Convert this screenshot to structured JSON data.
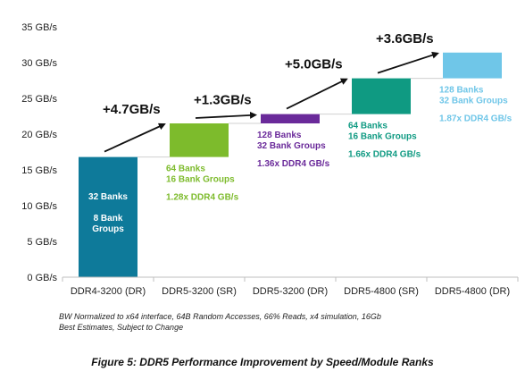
{
  "chart_data": {
    "type": "bar",
    "subtype": "waterfall",
    "categories": [
      "DDR4-3200 (DR)",
      "DDR5-3200 (SR)",
      "DDR5-3200 (DR)",
      "DDR5-4800 (SR)",
      "DDR5-4800 (DR)"
    ],
    "floating_ranges": [
      [
        0,
        16.8
      ],
      [
        16.8,
        21.5
      ],
      [
        21.5,
        22.8
      ],
      [
        22.8,
        27.8
      ],
      [
        27.8,
        31.4
      ]
    ],
    "deltas": [
      "+4.7GB/s",
      "+1.3GB/s",
      "+5.0GB/s",
      "+3.6GB/s"
    ],
    "colors": [
      "#0e7a9a",
      "#7dbb2c",
      "#6a2a9a",
      "#0f9a82",
      "#6fc6e8"
    ],
    "annotations": [
      [
        "32 Banks",
        "",
        "8 Bank",
        "Groups"
      ],
      [
        "64 Banks",
        "16 Bank Groups",
        "",
        "1.28x DDR4 GB/s"
      ],
      [
        "128 Banks",
        "32 Bank Groups",
        "",
        "1.36x DDR4 GB/s"
      ],
      [
        "64 Banks",
        "16 Bank Groups",
        "",
        "1.66x DDR4 GB/s"
      ],
      [
        "128 Banks",
        "32 Bank Groups",
        "",
        "1.87x DDR4 GB/s"
      ]
    ],
    "y_ticks": [
      "0 GB/s",
      "5 GB/s",
      "10 GB/s",
      "15 GB/s",
      "20 GB/s",
      "25 GB/s",
      "30 GB/s",
      "35 GB/s"
    ],
    "ylim": [
      0,
      35
    ],
    "grid": false
  },
  "notes": [
    "BW Normalized to x64 interface, 64B Random Accesses, 66% Reads, x4 simulation, 16Gb",
    "Best Estimates, Subject to Change"
  ],
  "caption": "Figure 5: DDR5 Performance Improvement by Speed/Module Ranks"
}
